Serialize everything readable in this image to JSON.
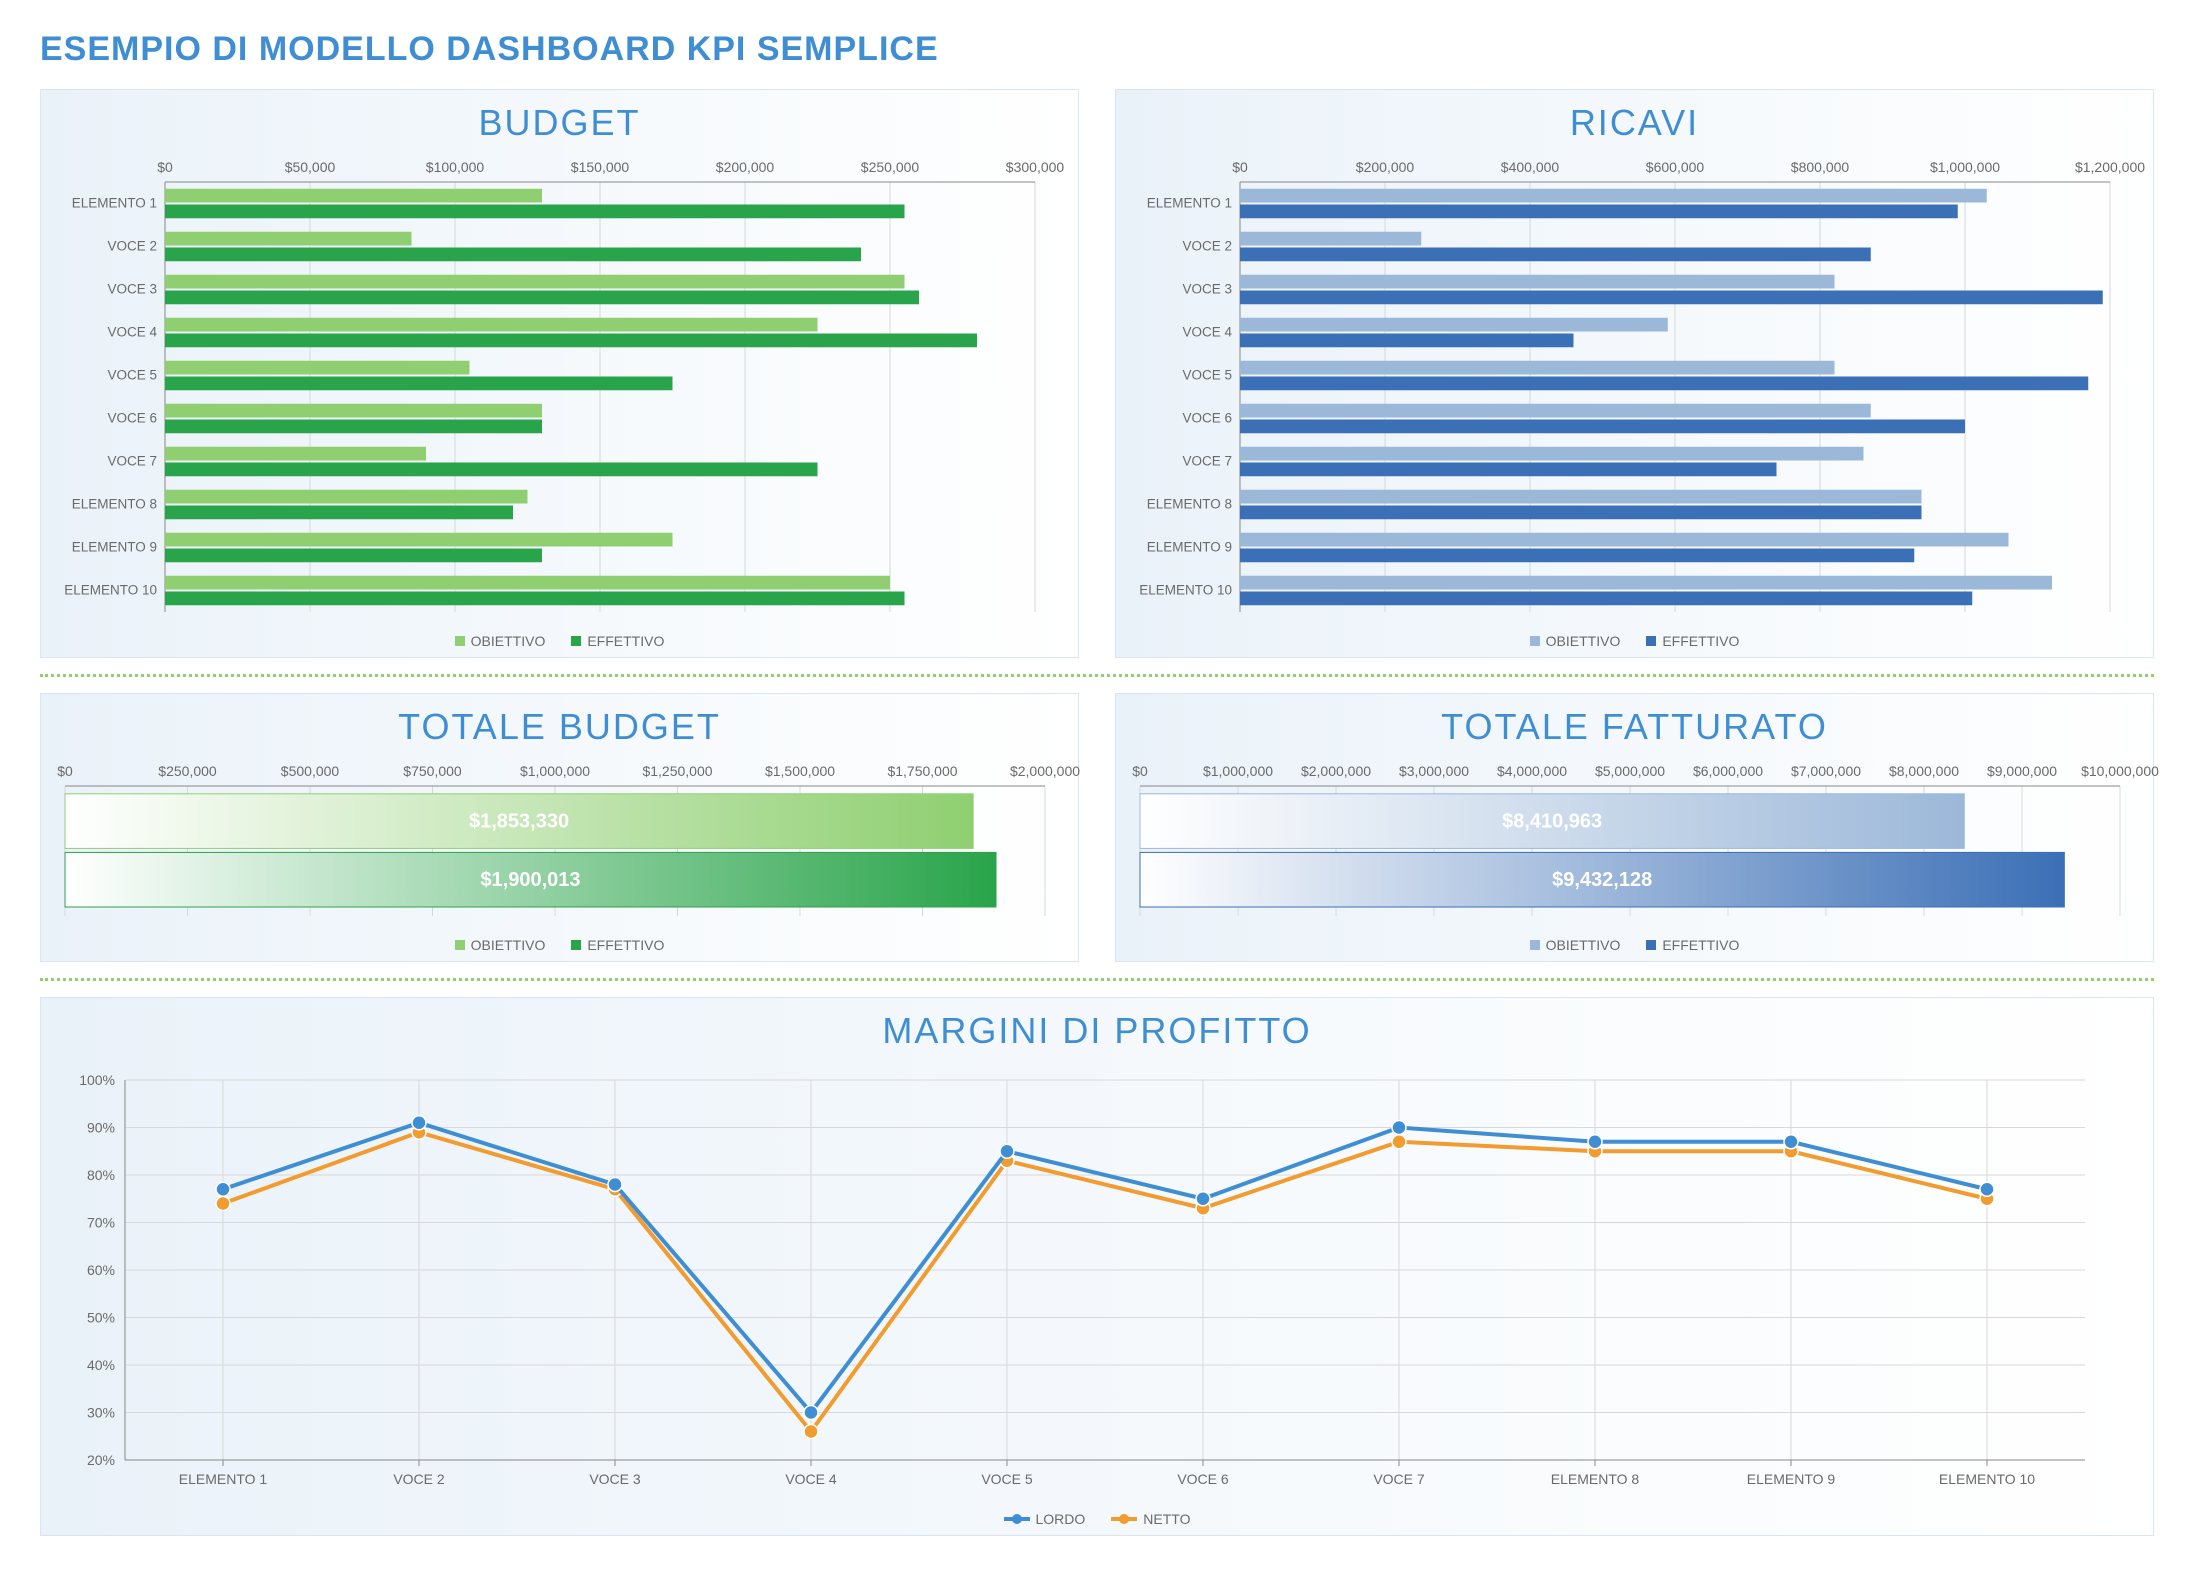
{
  "title": "ESEMPIO DI MODELLO DASHBOARD KPI SEMPLICE",
  "categories": [
    "ELEMENTO 1",
    "VOCE 2",
    "VOCE 3",
    "VOCE 4",
    "VOCE 5",
    "VOCE 6",
    "VOCE 7",
    "ELEMENTO 8",
    "ELEMENTO 9",
    "ELEMENTO 10"
  ],
  "legend": {
    "obiettivo": "OBIETTIVO",
    "effettivo": "EFFETTIVO",
    "lordo": "LORDO",
    "netto": "NETTO"
  },
  "colors": {
    "green_light": "#8fcf71",
    "green_dark": "#29a44a",
    "blue_light": "#9cb8d9",
    "blue_dark": "#3b6fb6",
    "axis": "#888888",
    "grid": "#d8d8d8",
    "heading": "#3f8ed3",
    "line_lordo": "#3f8ed3",
    "line_netto": "#f29b2e",
    "marker_lordo": "#3f8ed3",
    "marker_netto": "#f29b2e",
    "divider": "#8fcf71"
  },
  "budget": {
    "title": "BUDGET",
    "xmin": 0,
    "xmax": 300000,
    "xtick": 50000,
    "tick_labels": [
      "$0",
      "$50,000",
      "$100,000",
      "$150,000",
      "$200,000",
      "$250,000",
      "$300,000"
    ],
    "obiettivo": [
      130000,
      85000,
      255000,
      225000,
      105000,
      130000,
      90000,
      125000,
      175000,
      250000
    ],
    "effettivo": [
      255000,
      240000,
      260000,
      280000,
      175000,
      130000,
      225000,
      120000,
      130000,
      255000
    ]
  },
  "ricavi": {
    "title": "RICAVI",
    "xmin": 0,
    "xmax": 1200000,
    "xtick": 200000,
    "tick_labels": [
      "$0",
      "$200,000",
      "$400,000",
      "$600,000",
      "$800,000",
      "$1,000,000",
      "$1,200,000"
    ],
    "obiettivo": [
      1030000,
      250000,
      820000,
      590000,
      820000,
      870000,
      860000,
      940000,
      1060000,
      1120000
    ],
    "effettivo": [
      990000,
      870000,
      1190000,
      460000,
      1170000,
      1000000,
      740000,
      940000,
      930000,
      1010000
    ]
  },
  "totale_budget": {
    "title": "TOTALE BUDGET",
    "xmin": 0,
    "xmax": 2000000,
    "xtick": 250000,
    "tick_labels": [
      "$0",
      "$250,000",
      "$500,000",
      "$750,000",
      "$1,000,000",
      "$1,250,000",
      "$1,500,000",
      "$1,750,000",
      "$2,000,000"
    ],
    "obiettivo": 1853330,
    "obiettivo_label": "$1,853,330",
    "effettivo": 1900013,
    "effettivo_label": "$1,900,013"
  },
  "totale_fatturato": {
    "title": "TOTALE FATTURATO",
    "xmin": 0,
    "xmax": 10000000,
    "xtick": 1000000,
    "tick_labels": [
      "$0",
      "$1,000,000",
      "$2,000,000",
      "$3,000,000",
      "$4,000,000",
      "$5,000,000",
      "$6,000,000",
      "$7,000,000",
      "$8,000,000",
      "$9,000,000",
      "$10,000,000"
    ],
    "obiettivo": 8410963,
    "obiettivo_label": "$8,410,963",
    "effettivo": 9432128,
    "effettivo_label": "$9,432,128"
  },
  "margini": {
    "title": "MARGINI DI PROFITTO",
    "ymin": 20,
    "ymax": 100,
    "ytick": 10,
    "tick_labels": [
      "20%",
      "30%",
      "40%",
      "50%",
      "60%",
      "70%",
      "80%",
      "90%",
      "100%"
    ],
    "lordo": [
      77,
      91,
      78,
      30,
      85,
      75,
      90,
      87,
      87,
      77
    ],
    "netto": [
      74,
      89,
      77,
      26,
      83,
      73,
      87,
      85,
      85,
      75
    ]
  }
}
